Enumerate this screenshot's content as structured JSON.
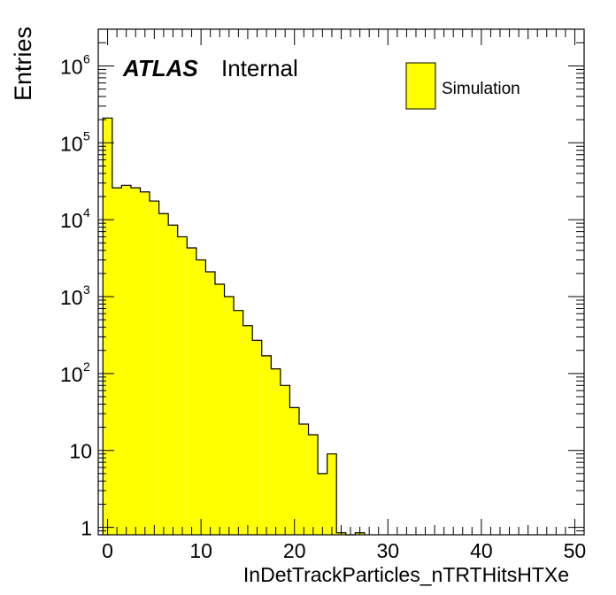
{
  "chart_data": {
    "type": "bar",
    "title": "",
    "experiment_label": "ATLAS",
    "status_label": "Internal",
    "xlabel": "InDetTrackParticles_nTRTHitsHTXe",
    "ylabel": "Entries",
    "xlim": [
      -1,
      51
    ],
    "ylim": [
      0.8,
      3000000
    ],
    "log_y": true,
    "x_ticks": [
      {
        "value": 0,
        "label": "0"
      },
      {
        "value": 10,
        "label": "10"
      },
      {
        "value": 20,
        "label": "20"
      },
      {
        "value": 30,
        "label": "30"
      },
      {
        "value": 40,
        "label": "40"
      },
      {
        "value": 50,
        "label": "50"
      }
    ],
    "y_ticks": [
      {
        "value": 1,
        "label": "1"
      },
      {
        "value": 10,
        "label": "10"
      },
      {
        "value": 100,
        "base": "10",
        "exp": "2"
      },
      {
        "value": 1000,
        "base": "10",
        "exp": "3"
      },
      {
        "value": 10000,
        "base": "10",
        "exp": "4"
      },
      {
        "value": 100000,
        "base": "10",
        "exp": "5"
      },
      {
        "value": 1000000,
        "base": "10",
        "exp": "6"
      }
    ],
    "bin_edges_start": -0.5,
    "bin_width": 1,
    "values": [
      210000,
      26000,
      28000,
      26000,
      23000,
      17500,
      12000,
      8500,
      6000,
      4300,
      3000,
      2100,
      1450,
      1000,
      660,
      420,
      270,
      170,
      115,
      70,
      36,
      22,
      16,
      5,
      9,
      0.85,
      0,
      0.85
    ],
    "series": [
      {
        "name": "Simulation",
        "color": "#ffff00"
      }
    ],
    "legend_position": "top-right",
    "grid": false,
    "colors": {
      "fill": "#ffff00",
      "line": "#000000"
    }
  }
}
